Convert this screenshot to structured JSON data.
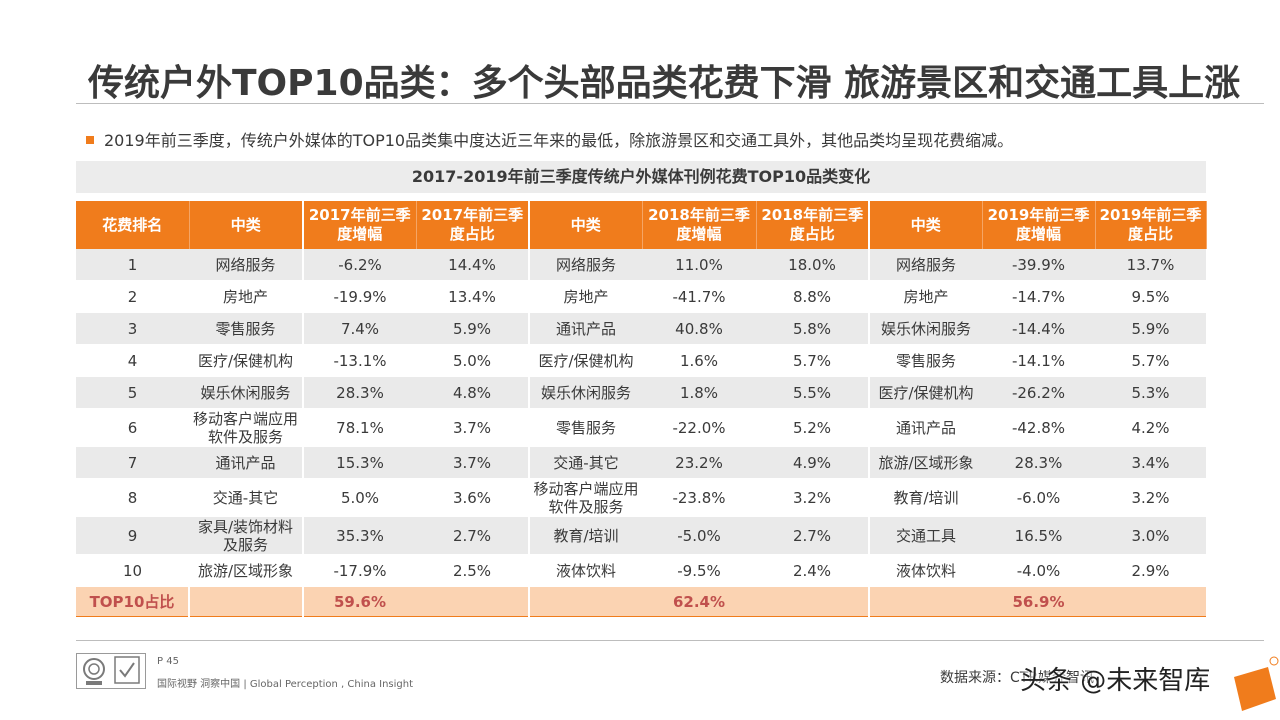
{
  "slide": {
    "title": "传统户外TOP10品类：多个头部品类花费下滑 旅游景区和交通工具上涨",
    "intro": "2019年前三季度，传统户外媒体的TOP10品类集中度达近三年来的最低，除旅游景区和交通工具外，其他品类均呈现花费缩减。",
    "bullet_icon": "square-bullet-icon",
    "accent_color": "#f07c1c"
  },
  "table": {
    "title": "2017-2019年前三季度传统户外媒体刊例花费TOP10品类变化",
    "headers": [
      "花费排名",
      "中类",
      "2017年前三季度增幅",
      "2017年前三季度占比",
      "中类",
      "2018年前三季度增幅",
      "2018年前三季度占比",
      "中类",
      "2019年前三季度增幅",
      "2019年前三季度占比"
    ],
    "rows": [
      [
        "1",
        "网络服务",
        "-6.2%",
        "14.4%",
        "网络服务",
        "11.0%",
        "18.0%",
        "网络服务",
        "-39.9%",
        "13.7%"
      ],
      [
        "2",
        "房地产",
        "-19.9%",
        "13.4%",
        "房地产",
        "-41.7%",
        "8.8%",
        "房地产",
        "-14.7%",
        "9.5%"
      ],
      [
        "3",
        "零售服务",
        "7.4%",
        "5.9%",
        "通讯产品",
        "40.8%",
        "5.8%",
        "娱乐休闲服务",
        "-14.4%",
        "5.9%"
      ],
      [
        "4",
        "医疗/保健机构",
        "-13.1%",
        "5.0%",
        "医疗/保健机构",
        "1.6%",
        "5.7%",
        "零售服务",
        "-14.1%",
        "5.7%"
      ],
      [
        "5",
        "娱乐休闲服务",
        "28.3%",
        "4.8%",
        "娱乐休闲服务",
        "1.8%",
        "5.5%",
        "医疗/保健机构",
        "-26.2%",
        "5.3%"
      ],
      [
        "6",
        "移动客户端应用软件及服务",
        "78.1%",
        "3.7%",
        "零售服务",
        "-22.0%",
        "5.2%",
        "通讯产品",
        "-42.8%",
        "4.2%"
      ],
      [
        "7",
        "通讯产品",
        "15.3%",
        "3.7%",
        "交通-其它",
        "23.2%",
        "4.9%",
        "旅游/区域形象",
        "28.3%",
        "3.4%"
      ],
      [
        "8",
        "交通-其它",
        "5.0%",
        "3.6%",
        "移动客户端应用软件及服务",
        "-23.8%",
        "3.2%",
        "教育/培训",
        "-6.0%",
        "3.2%"
      ],
      [
        "9",
        "家具/装饰材料及服务",
        "35.3%",
        "2.7%",
        "教育/培训",
        "-5.0%",
        "2.7%",
        "交通工具",
        "16.5%",
        "3.0%"
      ],
      [
        "10",
        "旅游/区域形象",
        "-17.9%",
        "2.5%",
        "液体饮料",
        "-9.5%",
        "2.4%",
        "液体饮料",
        "-4.0%",
        "2.9%"
      ]
    ],
    "total": {
      "label": "TOP10占比",
      "y2017": "59.6%",
      "y2018": "62.4%",
      "y2019": "56.9%"
    }
  },
  "footer": {
    "page_number": "P 45",
    "slogan": "国际视野  洞察中国 |  Global Perception , China Insight",
    "source": "数据来源：CTR媒介智讯",
    "watermark": "头条 @未来智库",
    "certification_logos": "certification-logos-icon",
    "corner_mark": "brand-corner-mark-icon"
  }
}
